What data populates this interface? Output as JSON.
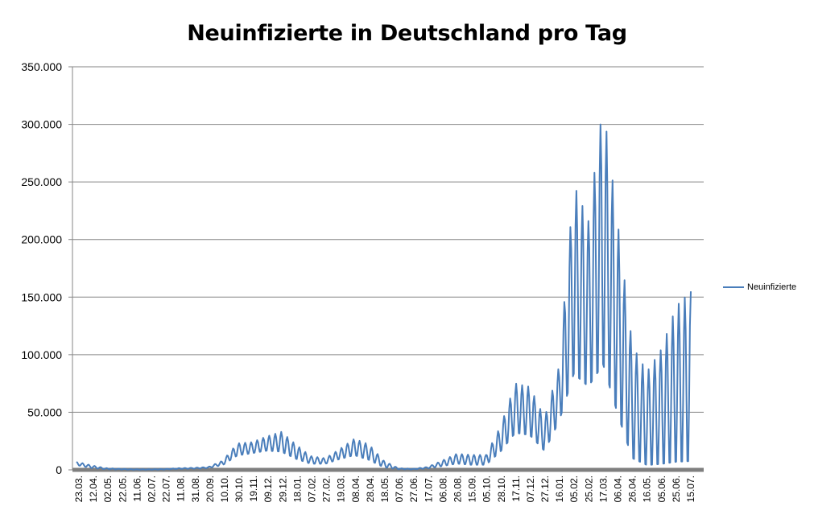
{
  "chart_data": {
    "type": "line",
    "title": "Neuinfizierte in Deutschland pro Tag",
    "xlabel": "",
    "ylabel": "",
    "ylim": [
      0,
      350000
    ],
    "yticks": [
      0,
      50000,
      100000,
      150000,
      200000,
      250000,
      300000,
      350000
    ],
    "ytick_labels": [
      "0",
      "50.000",
      "100.000",
      "150.000",
      "200.000",
      "250.000",
      "300.000",
      "350.000"
    ],
    "x_tick_labels": [
      "23.03.",
      "12.04.",
      "02.05.",
      "22.05.",
      "11.06.",
      "02.07.",
      "22.07.",
      "11.08.",
      "31.08.",
      "20.09.",
      "10.10.",
      "30.10.",
      "19.11.",
      "09.12.",
      "29.12.",
      "18.01.",
      "07.02.",
      "27.02.",
      "19.03.",
      "08.04.",
      "28.04.",
      "18.05.",
      "07.06.",
      "27.06.",
      "17.07.",
      "06.08.",
      "26.08.",
      "15.09.",
      "05.10.",
      "28.10.",
      "17.11.",
      "07.12.",
      "27.12.",
      "16.01.",
      "05.02.",
      "25.02.",
      "17.03.",
      "06.04.",
      "26.04.",
      "16.05.",
      "05.06.",
      "25.06.",
      "15.07."
    ],
    "grid": true,
    "legend_position": "right",
    "series": [
      {
        "name": "Neuinfizierte",
        "color": "#4a7ebb",
        "description_of_shape": "daily values with strong weekly oscillation",
        "envelope": {
          "x_index": [
            0,
            1,
            2,
            3,
            4,
            5,
            6,
            7,
            8,
            9,
            10,
            11,
            12,
            13,
            14,
            15,
            16,
            17,
            18,
            19,
            20,
            21,
            22,
            23,
            24,
            25,
            26,
            27,
            28,
            29,
            30,
            31,
            32,
            33,
            34,
            35,
            36,
            37,
            38,
            39,
            40,
            41,
            42
          ],
          "weekly_max": [
            7000,
            4000,
            1500,
            1000,
            500,
            500,
            800,
            1500,
            1800,
            2500,
            8000,
            23000,
            24000,
            29000,
            33000,
            22000,
            12000,
            10000,
            18000,
            27000,
            22000,
            8000,
            1500,
            900,
            2500,
            8000,
            14000,
            13000,
            13000,
            38000,
            75000,
            72000,
            45000,
            90000,
            248000,
            216000,
            318000,
            215000,
            108000,
            85000,
            105000,
            142000,
            155000
          ],
          "weekly_min": [
            4000,
            1500,
            500,
            300,
            200,
            200,
            300,
            800,
            1000,
            1500,
            4000,
            12000,
            14000,
            16000,
            15000,
            9000,
            5000,
            5000,
            9000,
            12000,
            8000,
            2000,
            500,
            400,
            1200,
            3000,
            5000,
            4000,
            4000,
            15000,
            30000,
            28000,
            15000,
            40000,
            75000,
            65000,
            80000,
            40000,
            5000,
            0,
            0,
            0,
            0
          ]
        }
      }
    ]
  }
}
